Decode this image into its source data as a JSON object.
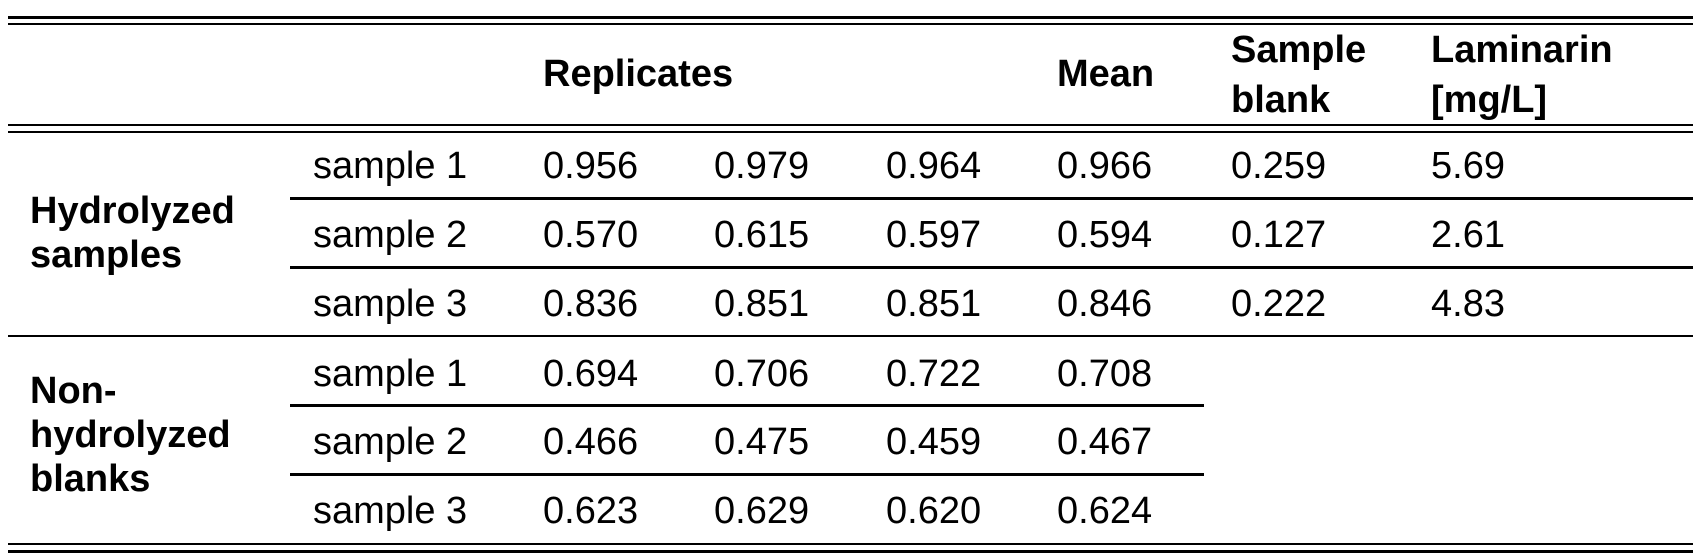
{
  "table": {
    "header": {
      "replicates": "Replicates",
      "mean": "Mean",
      "sample_blank_l1": "Sample",
      "sample_blank_l2": "blank",
      "laminarin_l1": "Laminarin",
      "laminarin_l2": "[mg/L]"
    },
    "groups": [
      {
        "label_l1": "Hydrolyzed",
        "label_l2": "samples",
        "rows": [
          {
            "name": "sample 1",
            "r1": "0.956",
            "r2": "0.979",
            "r3": "0.964",
            "mean": "0.966",
            "blank": "0.259",
            "laminarin": "5.69"
          },
          {
            "name": "sample 2",
            "r1": "0.570",
            "r2": "0.615",
            "r3": "0.597",
            "mean": "0.594",
            "blank": "0.127",
            "laminarin": "2.61"
          },
          {
            "name": "sample 3",
            "r1": "0.836",
            "r2": "0.851",
            "r3": "0.851",
            "mean": "0.846",
            "blank": "0.222",
            "laminarin": "4.83"
          }
        ]
      },
      {
        "label_l1": "Non-",
        "label_l2": "hydrolyzed",
        "label_l3": "blanks",
        "rows": [
          {
            "name": "sample 1",
            "r1": "0.694",
            "r2": "0.706",
            "r3": "0.722",
            "mean": "0.708"
          },
          {
            "name": "sample 2",
            "r1": "0.466",
            "r2": "0.475",
            "r3": "0.459",
            "mean": "0.467"
          },
          {
            "name": "sample 3",
            "r1": "0.623",
            "r2": "0.629",
            "r3": "0.620",
            "mean": "0.624"
          }
        ]
      }
    ]
  }
}
